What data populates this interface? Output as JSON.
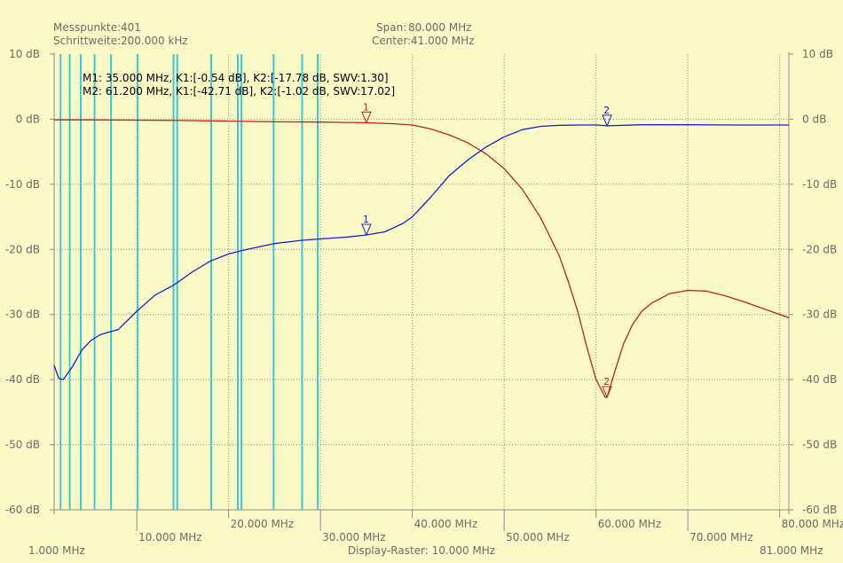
{
  "header": {
    "points_label": "Messpunkte:",
    "points_value": "401",
    "step_label": "Schrittweite:",
    "step_value": "200.000 kHz",
    "span_label": "Span:",
    "span_value": "80.000 MHz",
    "center_label": "Center:",
    "center_value": "41.000 MHz"
  },
  "footer": {
    "start": "1.000 MHz",
    "raster": "Display-Raster: 10.000 MHz",
    "stop": "81.000 MHz"
  },
  "markers": {
    "m1": "M1: 35.000 MHz, K1:[-0.54 dB], K2:[-17.78 dB, SWV:1.30]",
    "m2": "M2: 61.200 MHz, K1:[-42.71 dB], K2:[-1.02 dB, SWV:17.02]"
  },
  "colors": {
    "background": "#fbfac6",
    "trace_k1": "#c0201c",
    "trace_k2": "#1620c8",
    "highlight_lines": "#3cc8dc",
    "grid": "#8c8c8c"
  },
  "chart_data": {
    "type": "line",
    "xlim": [
      1,
      81
    ],
    "ylim": [
      -60,
      10
    ],
    "x_ticks": [
      10,
      20,
      30,
      40,
      50,
      60,
      70,
      80
    ],
    "x_tick_labels": [
      "10.000 MHz",
      "20.000 MHz",
      "30.000 MHz",
      "40.000 MHz",
      "50.000 MHz",
      "60.000 MHz",
      "70.000 MHz",
      "80.000 MHz"
    ],
    "y_ticks": [
      10,
      0,
      -10,
      -20,
      -30,
      -40,
      -50,
      -60
    ],
    "y_tick_labels": [
      "10 dB",
      "0 dB",
      "-10 dB",
      "-20 dB",
      "-30 dB",
      "-40 dB",
      "-50 dB",
      "-60 dB"
    ],
    "grid": true,
    "vertical_highlight_lines_mhz": [
      1.7,
      2.7,
      3.9,
      5.4,
      7.2,
      10.1,
      14.0,
      14.4,
      18.1,
      21.0,
      21.4,
      24.9,
      28.0,
      29.7
    ],
    "series": [
      {
        "name": "K1",
        "color": "#c0201c",
        "x": [
          1,
          5,
          10,
          15,
          20,
          25,
          30,
          35,
          38,
          40,
          42,
          44,
          46,
          48,
          50,
          52,
          54,
          56,
          57,
          58,
          59,
          60,
          61,
          61.2,
          62,
          63,
          64,
          65,
          66,
          68,
          70,
          72,
          74,
          76,
          78,
          81
        ],
        "y": [
          -0.1,
          -0.1,
          -0.15,
          -0.2,
          -0.3,
          -0.4,
          -0.45,
          -0.54,
          -0.7,
          -0.9,
          -1.5,
          -2.4,
          -3.6,
          -5.3,
          -7.6,
          -10.8,
          -15.2,
          -21.0,
          -25.0,
          -29.5,
          -35.0,
          -40.0,
          -42.7,
          -42.71,
          -39.0,
          -34.5,
          -31.5,
          -29.5,
          -28.3,
          -26.8,
          -26.3,
          -26.4,
          -27.1,
          -28.0,
          -29.0,
          -30.5
        ]
      },
      {
        "name": "K2",
        "color": "#1620c8",
        "x": [
          1,
          1.5,
          2,
          3,
          4,
          5,
          6,
          7,
          8,
          10,
          12,
          14,
          16,
          18,
          20,
          22,
          25,
          28,
          30,
          33,
          35,
          37,
          39,
          40,
          42,
          44,
          46,
          48,
          50,
          52,
          54,
          56,
          58,
          60,
          61.2,
          65,
          70,
          75,
          81
        ],
        "y": [
          -37.8,
          -39.8,
          -40.0,
          -38.0,
          -35.5,
          -34.0,
          -33.1,
          -32.7,
          -32.3,
          -29.5,
          -27.0,
          -25.5,
          -23.5,
          -21.8,
          -20.7,
          -20.0,
          -19.1,
          -18.6,
          -18.4,
          -18.1,
          -17.78,
          -17.3,
          -16.0,
          -15.0,
          -12.0,
          -8.7,
          -6.3,
          -4.3,
          -2.7,
          -1.6,
          -1.1,
          -0.95,
          -0.9,
          -0.9,
          -1.02,
          -0.85,
          -0.85,
          -0.9,
          -0.9
        ]
      }
    ],
    "marker_points": [
      {
        "label": "1",
        "series": "K1",
        "x": 35.0,
        "y": -0.54
      },
      {
        "label": "1",
        "series": "K2",
        "x": 35.0,
        "y": -17.78
      },
      {
        "label": "2",
        "series": "K1",
        "x": 61.2,
        "y": -42.71
      },
      {
        "label": "2",
        "series": "K2",
        "x": 61.2,
        "y": -1.02
      }
    ]
  }
}
